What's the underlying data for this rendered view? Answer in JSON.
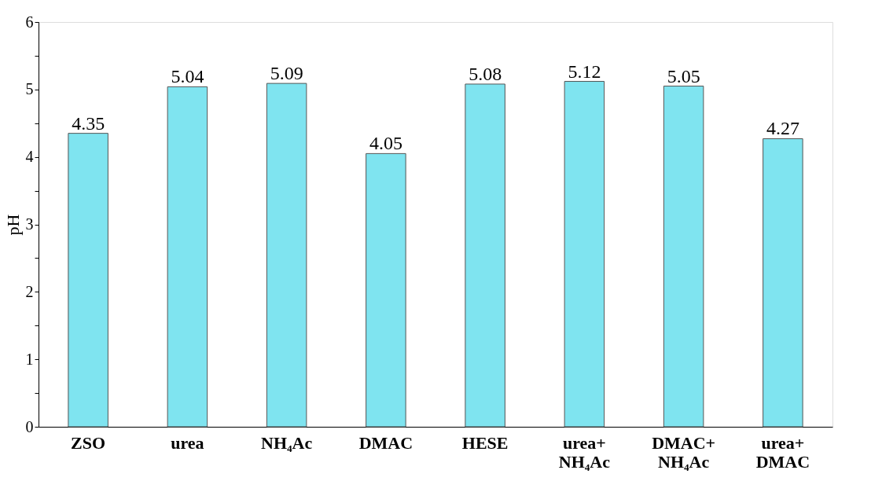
{
  "chart_data": {
    "type": "bar",
    "ylabel": "pH",
    "categories": [
      "ZSO",
      "urea",
      "NH₄Ac",
      "DMAC",
      "HESE",
      "urea+ NH₄Ac",
      "DMAC+ NH₄Ac",
      "urea+ DMAC"
    ],
    "values": [
      4.35,
      5.04,
      5.09,
      4.05,
      5.08,
      5.12,
      5.05,
      4.27
    ],
    "color": "#7fe4f0",
    "ylim": [
      0,
      6
    ],
    "yticks": [
      0,
      {
        "value": 0.5,
        "label": null
      },
      1,
      {
        "value": 1.5,
        "label": null
      },
      2,
      {
        "value": 2.5,
        "label": null
      },
      3,
      {
        "value": 3.5,
        "label": null
      },
      4,
      {
        "value": 4.5,
        "label": null
      },
      5,
      {
        "value": 5.5,
        "label": null
      },
      6
    ],
    "data_labels": true,
    "grid": false
  }
}
